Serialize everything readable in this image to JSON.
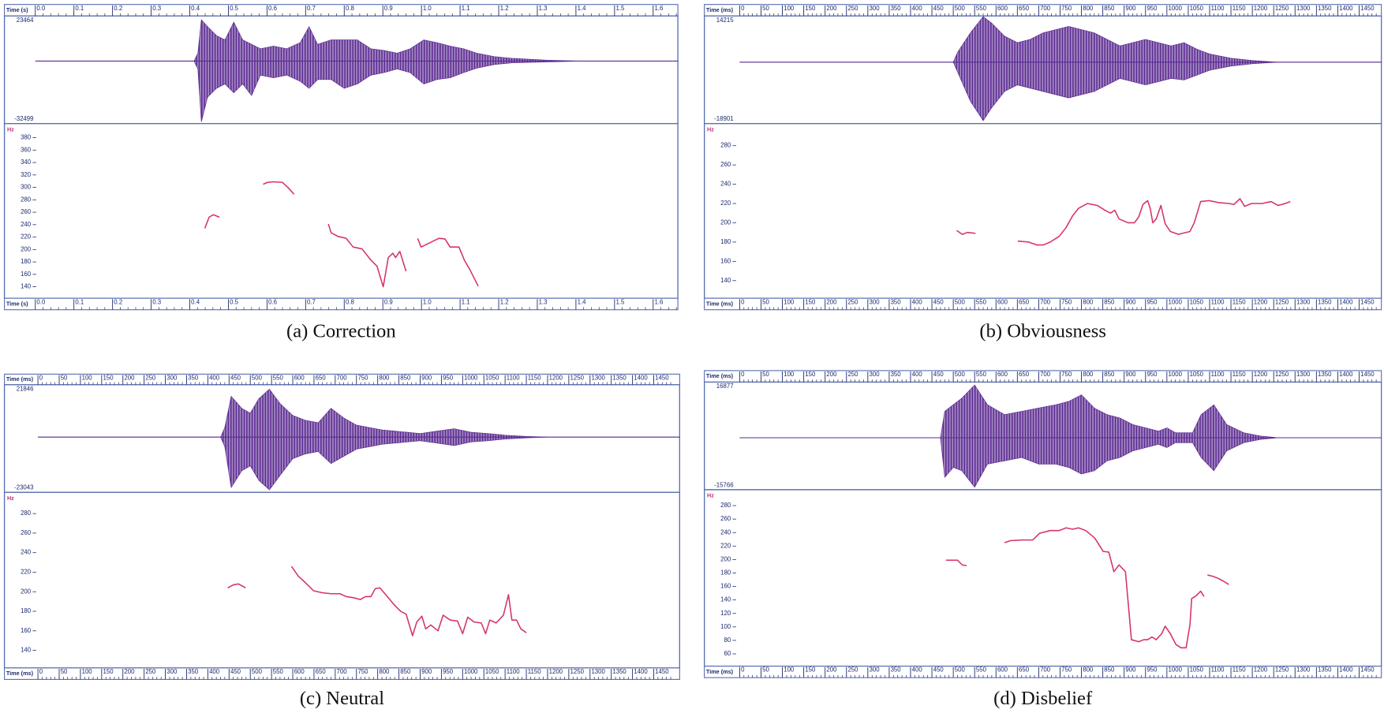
{
  "chart_data": [
    {
      "type": "line",
      "title": "(a) Correction",
      "x_label": "Time (s)",
      "y_label": "Hz",
      "xlim": [
        0,
        1.664
      ],
      "xticks": [
        {
          "value": 0,
          "label": "0.0"
        },
        0.1,
        0.2,
        0.3,
        0.4,
        0.5,
        0.6,
        0.7,
        0.8,
        0.9,
        {
          "value": 1,
          "label": "1.0"
        },
        1.1,
        1.2,
        1.3,
        1.4,
        1.5,
        1.6
      ],
      "ylim": [
        121.5,
        402.7
      ],
      "yticks": [
        140,
        160,
        180,
        200,
        220,
        240,
        260,
        280,
        300,
        320,
        340,
        360,
        380
      ],
      "wave_ylim": [
        -32499,
        23464
      ],
      "wave_yticks": [
        23464,
        -32499
      ],
      "waveform": {
        "color": "#5b2a91",
        "x": [
          0,
          0.411,
          0.421,
          0.43,
          0.446,
          0.469,
          0.491,
          0.514,
          0.537,
          0.56,
          0.583,
          0.617,
          0.651,
          0.686,
          0.709,
          0.731,
          0.766,
          0.8,
          0.834,
          0.869,
          0.903,
          0.937,
          0.971,
          1.006,
          1.04,
          1.074,
          1.109,
          1.143,
          1.189,
          1.234,
          1.326,
          1.417,
          1.664
        ],
        "upper": [
          0,
          0,
          4100,
          21500,
          17900,
          13300,
          11000,
          20200,
          11000,
          8700,
          6400,
          7800,
          6400,
          9600,
          17900,
          8700,
          11000,
          11000,
          11000,
          6400,
          5500,
          4100,
          6400,
          11000,
          9600,
          7800,
          6400,
          4100,
          2300,
          1400,
          460,
          0,
          0
        ],
        "lower": [
          0,
          0,
          -4100,
          -31600,
          -18800,
          -14200,
          -11900,
          -16500,
          -11900,
          -17900,
          -7300,
          -8700,
          -7300,
          -10500,
          -14200,
          -9600,
          -9600,
          -14200,
          -11900,
          -7300,
          -6000,
          -4100,
          -6000,
          -11900,
          -9600,
          -8700,
          -6000,
          -3700,
          -1800,
          -900,
          -460,
          0,
          0
        ]
      },
      "pitch": {
        "color": "#d6336c",
        "x": [
          0.439,
          0.45,
          0.461,
          0.477,
          null,
          0.59,
          0.601,
          0.617,
          0.64,
          0.654,
          0.67,
          null,
          0.759,
          0.766,
          0.784,
          0.805,
          0.823,
          0.846,
          0.869,
          0.885,
          0.901,
          0.914,
          0.926,
          0.933,
          0.944,
          0.96,
          null,
          0.99,
          0.999,
          1.019,
          1.045,
          1.061,
          1.074,
          1.097,
          1.111,
          1.125,
          1.147
        ],
        "values": [
          234,
          252,
          256,
          252,
          null,
          305,
          308,
          309,
          308,
          300,
          289,
          null,
          241,
          227,
          221,
          218,
          204,
          201,
          183,
          173,
          140,
          187,
          194,
          187,
          197,
          165,
          null,
          218,
          204,
          210,
          218,
          217,
          204,
          204,
          183,
          168,
          141
        ]
      }
    },
    {
      "type": "line",
      "title": "(b) Obviousness",
      "x_label": "Time (ms)",
      "y_label": "Hz",
      "xlim": [
        0,
        1502
      ],
      "xticks": [
        0,
        50,
        100,
        150,
        200,
        250,
        300,
        350,
        400,
        450,
        500,
        550,
        600,
        650,
        700,
        750,
        800,
        850,
        900,
        950,
        1000,
        1050,
        1100,
        1150,
        1200,
        1250,
        1300,
        1350,
        1400,
        1450
      ],
      "ylim": [
        121.7,
        302.9
      ],
      "yticks": [
        140,
        160,
        180,
        200,
        220,
        240,
        260,
        280
      ],
      "wave_ylim": [
        -18901,
        14215
      ],
      "wave_yticks": [
        14215,
        -18901
      ],
      "waveform": {
        "color": "#5b2a91",
        "x": [
          0,
          500,
          510,
          540,
          570,
          590,
          620,
          650,
          680,
          710,
          740,
          770,
          800,
          830,
          860,
          890,
          920,
          950,
          980,
          1010,
          1040,
          1070,
          1100,
          1150,
          1200,
          1260,
          1502
        ],
        "upper": [
          0,
          0,
          3000,
          9000,
          14000,
          12000,
          8000,
          6000,
          7000,
          9000,
          10000,
          11000,
          10000,
          9000,
          7000,
          5000,
          6000,
          7000,
          6000,
          5000,
          6000,
          4000,
          2500,
          1200,
          500,
          0,
          0
        ],
        "lower": [
          0,
          0,
          -3000,
          -12000,
          -18000,
          -14000,
          -9000,
          -7000,
          -8000,
          -9000,
          -10000,
          -11000,
          -10000,
          -9000,
          -7000,
          -5000,
          -6000,
          -7000,
          -6000,
          -5000,
          -5500,
          -4000,
          -2500,
          -1200,
          -500,
          0,
          0
        ]
      },
      "pitch": {
        "color": "#d6336c",
        "x": [
          508,
          521,
          533,
          552,
          null,
          651,
          676,
          696,
          711,
          727,
          748,
          764,
          779,
          793,
          814,
          837,
          855,
          868,
          878,
          888,
          909,
          924,
          934,
          944,
          955,
          961,
          967,
          975,
          986,
          996,
          1008,
          1027,
          1054,
          1064,
          1079,
          1099,
          1120,
          1145,
          1157,
          1171,
          1182,
          1198,
          1223,
          1244,
          1260,
          1277,
          1289
        ],
        "values": [
          192,
          188,
          190,
          189,
          null,
          181,
          180,
          177,
          177,
          180,
          186,
          195,
          207,
          215,
          220,
          218,
          213,
          210,
          213,
          204,
          200,
          200,
          206,
          219,
          223,
          215,
          200,
          204,
          218,
          199,
          191,
          188,
          191,
          200,
          222,
          223,
          221,
          220,
          219,
          225,
          217,
          220,
          220,
          222,
          218,
          220,
          222
        ]
      }
    },
    {
      "type": "line",
      "title": "(c) Neutral",
      "x_label": "Time (ms)",
      "y_label": "Hz",
      "xlim": [
        0,
        1511
      ],
      "xticks": [
        0,
        50,
        100,
        150,
        200,
        250,
        300,
        350,
        400,
        450,
        500,
        550,
        600,
        650,
        700,
        750,
        800,
        850,
        900,
        950,
        1000,
        1050,
        1100,
        1150,
        1200,
        1250,
        1300,
        1350,
        1400,
        1450
      ],
      "ylim": [
        122,
        301.7
      ],
      "yticks": [
        140,
        160,
        180,
        200,
        220,
        240,
        260,
        280
      ],
      "wave_ylim": [
        -23043,
        21846
      ],
      "wave_yticks": [
        21846,
        -23043
      ],
      "waveform": {
        "color": "#5b2a91",
        "x": [
          0,
          430,
          440,
          455,
          480,
          500,
          520,
          545,
          570,
          600,
          630,
          660,
          690,
          720,
          750,
          780,
          810,
          840,
          870,
          900,
          940,
          980,
          1020,
          1060,
          1100,
          1150,
          1200,
          1511
        ],
        "upper": [
          0,
          0,
          4000,
          17000,
          12000,
          10000,
          16000,
          20000,
          14000,
          9000,
          7000,
          6000,
          12000,
          8000,
          5000,
          4000,
          3000,
          2500,
          2000,
          1500,
          2500,
          3500,
          2000,
          1500,
          800,
          300,
          0,
          0
        ],
        "lower": [
          0,
          0,
          -4000,
          -21000,
          -14000,
          -12000,
          -18000,
          -22000,
          -16000,
          -9000,
          -7000,
          -6000,
          -11000,
          -8000,
          -5000,
          -4000,
          -3000,
          -2500,
          -2000,
          -1500,
          -2500,
          -3500,
          -2000,
          -1500,
          -800,
          -300,
          0,
          0
        ]
      },
      "pitch": {
        "color": "#d6336c",
        "x": [
          447,
          460,
          472,
          489,
          null,
          597,
          613,
          628,
          649,
          669,
          690,
          711,
          726,
          742,
          759,
          771,
          784,
          794,
          805,
          821,
          838,
          854,
          867,
          882,
          892,
          904,
          913,
          925,
          942,
          954,
          971,
          988,
          1000,
          1012,
          1027,
          1044,
          1054,
          1064,
          1079,
          1096,
          1108,
          1116,
          1127,
          1137,
          1150
        ],
        "values": [
          204,
          207,
          208,
          204,
          null,
          226,
          216,
          210,
          201,
          199,
          198,
          198,
          195,
          194,
          192,
          195,
          195,
          203,
          204,
          196,
          187,
          180,
          177,
          155,
          169,
          175,
          162,
          166,
          160,
          176,
          171,
          170,
          157,
          174,
          169,
          168,
          157,
          171,
          168,
          176,
          197,
          171,
          171,
          162,
          158
        ]
      }
    },
    {
      "type": "line",
      "title": "(d) Disbelief",
      "x_label": "Time (ms)",
      "y_label": "Hz",
      "xlim": [
        0,
        1502
      ],
      "xticks": [
        0,
        50,
        100,
        150,
        200,
        250,
        300,
        350,
        400,
        450,
        500,
        550,
        600,
        650,
        700,
        750,
        800,
        850,
        900,
        950,
        1000,
        1050,
        1100,
        1150,
        1200,
        1250,
        1300,
        1350,
        1400,
        1450
      ],
      "ylim": [
        41.7,
        303.6
      ],
      "yticks": [
        60,
        80,
        100,
        120,
        140,
        160,
        180,
        200,
        220,
        240,
        260,
        280
      ],
      "wave_ylim": [
        -15766,
        16877
      ],
      "wave_yticks": [
        16877,
        -15766
      ],
      "waveform": {
        "color": "#5b2a91",
        "x": [
          0,
          470,
          480,
          500,
          520,
          550,
          580,
          620,
          660,
          700,
          740,
          770,
          800,
          830,
          860,
          890,
          920,
          950,
          980,
          1000,
          1020,
          1060,
          1080,
          1110,
          1140,
          1180,
          1220,
          1260,
          1502
        ],
        "upper": [
          0,
          0,
          8000,
          10000,
          12000,
          16000,
          10000,
          7000,
          8000,
          9000,
          10000,
          11000,
          13000,
          9000,
          7000,
          6000,
          4000,
          3000,
          2000,
          3000,
          1500,
          1500,
          7000,
          10000,
          4000,
          1500,
          500,
          0,
          0
        ],
        "lower": [
          0,
          0,
          -12000,
          -9000,
          -10000,
          -15000,
          -8000,
          -7000,
          -6000,
          -8000,
          -8000,
          -9000,
          -11000,
          -10000,
          -7000,
          -6000,
          -4000,
          -3000,
          -2000,
          -3000,
          -1500,
          -1500,
          -6000,
          -10000,
          -4000,
          -1500,
          -500,
          0,
          0
        ]
      },
      "pitch": {
        "color": "#d6336c",
        "x": [
          483,
          510,
          521,
          531,
          null,
          620,
          634,
          661,
          686,
          702,
          727,
          748,
          764,
          779,
          793,
          810,
          831,
          851,
          864,
          876,
          888,
          903,
          917,
          934,
          946,
          955,
          965,
          975,
          988,
          996,
          1008,
          1021,
          1033,
          1045,
          1054,
          1058,
          1068,
          1079,
          1087,
          null,
          1095,
          1108,
          1120,
          1132,
          1145
        ],
        "values": [
          199,
          199,
          192,
          191,
          null,
          225,
          228,
          229,
          229,
          239,
          243,
          243,
          247,
          245,
          247,
          243,
          232,
          212,
          211,
          182,
          192,
          182,
          81,
          78,
          81,
          81,
          85,
          81,
          90,
          101,
          90,
          74,
          69,
          69,
          103,
          142,
          146,
          153,
          145,
          null,
          177,
          175,
          172,
          168,
          163
        ]
      }
    }
  ]
}
